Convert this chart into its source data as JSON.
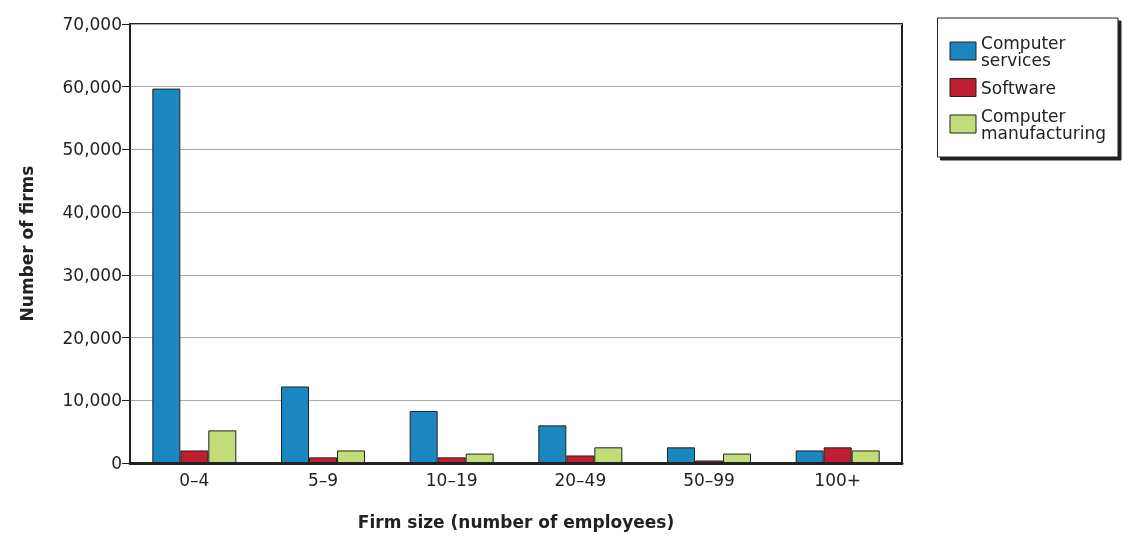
{
  "chart_data": {
    "type": "bar",
    "xlabel": "Firm size (number of employees)",
    "ylabel": "Number of firms",
    "categories": [
      "0–4",
      "5–9",
      "10–19",
      "20–49",
      "50–99",
      "100+"
    ],
    "series": [
      {
        "name": "Computer services",
        "color": "#1a87c0",
        "values": [
          59700,
          12200,
          8300,
          6000,
          2500,
          2000
        ]
      },
      {
        "name": "Software",
        "color": "#c01f32",
        "values": [
          2000,
          900,
          900,
          1200,
          400,
          2500
        ]
      },
      {
        "name": "Computer manufacturing",
        "color": "#c3dc7a",
        "values": [
          5200,
          2000,
          1500,
          2500,
          1500,
          2000
        ]
      }
    ],
    "ylim": [
      0,
      70000
    ],
    "yticks": [
      0,
      {
        "value": 10000,
        "label": "10,000"
      },
      {
        "value": 20000,
        "label": "20,000"
      },
      {
        "value": 30000,
        "label": "30,000"
      },
      {
        "value": 40000,
        "label": "40,000"
      },
      {
        "value": 50000,
        "label": "50,000"
      },
      {
        "value": 60000,
        "label": "60,000"
      },
      {
        "value": 70000,
        "label": "70,000"
      }
    ],
    "grid": "y",
    "legend": "top right"
  }
}
